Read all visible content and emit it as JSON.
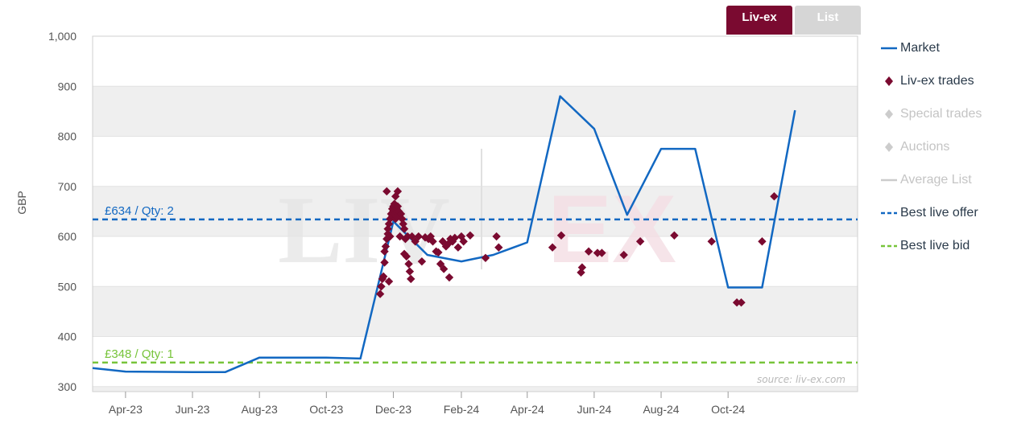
{
  "toggles": {
    "livex": "Liv-ex",
    "list": "List"
  },
  "legend": [
    {
      "label": "Market",
      "kind": "line",
      "color": "#1268c2",
      "muted": false,
      "icon": "line-icon"
    },
    {
      "label": "Liv-ex trades",
      "kind": "diamond",
      "color": "#7a0a30",
      "muted": false,
      "icon": "diamond-icon"
    },
    {
      "label": "Special trades",
      "kind": "diamond",
      "color": "#cccccc",
      "muted": true,
      "icon": "diamond-icon"
    },
    {
      "label": "Auctions",
      "kind": "diamond",
      "color": "#cccccc",
      "muted": true,
      "icon": "diamond-icon"
    },
    {
      "label": "Average List",
      "kind": "line",
      "color": "#cccccc",
      "muted": true,
      "icon": "line-icon"
    },
    {
      "label": "Best live offer",
      "kind": "dash",
      "color": "#1268c2",
      "muted": false,
      "icon": "dashed-line-icon"
    },
    {
      "label": "Best live bid",
      "kind": "dash",
      "color": "#77c43a",
      "muted": false,
      "icon": "dashed-line-icon"
    }
  ],
  "source": "source: liv-ex.com",
  "watermark": {
    "left": "LIV",
    "right": "EX"
  },
  "chart_data": {
    "type": "line",
    "ylabel": "GBP",
    "ylim": [
      290,
      1000
    ],
    "yticks": [
      "300",
      "400",
      "500",
      "600",
      "700",
      "800",
      "900",
      "1,000"
    ],
    "ytick_values": [
      300,
      400,
      500,
      600,
      700,
      800,
      900,
      1000
    ],
    "xlim": [
      "2023-03-02",
      "2025-01-27"
    ],
    "xticks": [
      {
        "label": "Apr-23",
        "date": "2023-04-01"
      },
      {
        "label": "Jun-23",
        "date": "2023-06-01"
      },
      {
        "label": "Aug-23",
        "date": "2023-08-01"
      },
      {
        "label": "Oct-23",
        "date": "2023-10-01"
      },
      {
        "label": "Dec-23",
        "date": "2023-12-01"
      },
      {
        "label": "Feb-24",
        "date": "2024-02-01"
      },
      {
        "label": "Apr-24",
        "date": "2024-04-01"
      },
      {
        "label": "Jun-24",
        "date": "2024-06-01"
      },
      {
        "label": "Aug-24",
        "date": "2024-08-01"
      },
      {
        "label": "Oct-24",
        "date": "2024-10-01"
      }
    ],
    "series": [
      {
        "name": "Market",
        "color": "#1268c2",
        "points": [
          [
            "2023-03-02",
            337
          ],
          [
            "2023-04-01",
            330
          ],
          [
            "2023-06-01",
            329
          ],
          [
            "2023-07-01",
            329
          ],
          [
            "2023-08-01",
            358
          ],
          [
            "2023-10-01",
            358
          ],
          [
            "2023-11-01",
            356
          ],
          [
            "2023-12-01",
            630
          ],
          [
            "2024-01-01",
            563
          ],
          [
            "2024-02-01",
            550
          ],
          [
            "2024-03-01",
            563
          ],
          [
            "2024-04-01",
            588
          ],
          [
            "2024-05-01",
            880
          ],
          [
            "2024-06-01",
            815
          ],
          [
            "2024-07-01",
            643
          ],
          [
            "2024-08-01",
            775
          ],
          [
            "2024-09-01",
            775
          ],
          [
            "2024-10-01",
            498
          ],
          [
            "2024-11-01",
            498
          ],
          [
            "2024-12-01",
            852
          ]
        ]
      },
      {
        "name": "Liv-ex trades",
        "type": "scatter",
        "color": "#7a0a30",
        "points": [
          [
            "2023-11-19",
            485
          ],
          [
            "2023-11-20",
            500
          ],
          [
            "2023-11-21",
            515
          ],
          [
            "2023-11-22",
            520
          ],
          [
            "2023-11-23",
            548
          ],
          [
            "2023-11-23",
            570
          ],
          [
            "2023-11-24",
            580
          ],
          [
            "2023-11-25",
            595
          ],
          [
            "2023-11-25",
            690
          ],
          [
            "2023-11-26",
            605
          ],
          [
            "2023-11-26",
            615
          ],
          [
            "2023-11-27",
            625
          ],
          [
            "2023-11-27",
            510
          ],
          [
            "2023-11-28",
            600
          ],
          [
            "2023-11-28",
            635
          ],
          [
            "2023-11-29",
            645
          ],
          [
            "2023-11-30",
            640
          ],
          [
            "2023-11-30",
            655
          ],
          [
            "2023-12-01",
            660
          ],
          [
            "2023-12-01",
            650
          ],
          [
            "2023-12-02",
            665
          ],
          [
            "2023-12-02",
            645
          ],
          [
            "2023-12-03",
            680
          ],
          [
            "2023-12-03",
            635
          ],
          [
            "2023-12-04",
            655
          ],
          [
            "2023-12-04",
            640
          ],
          [
            "2023-12-05",
            690
          ],
          [
            "2023-12-05",
            660
          ],
          [
            "2023-12-06",
            650
          ],
          [
            "2023-12-07",
            600
          ],
          [
            "2023-12-08",
            645
          ],
          [
            "2023-12-09",
            635
          ],
          [
            "2023-12-10",
            625
          ],
          [
            "2023-12-11",
            615
          ],
          [
            "2023-12-11",
            565
          ],
          [
            "2023-12-12",
            595
          ],
          [
            "2023-12-13",
            560
          ],
          [
            "2023-12-14",
            600
          ],
          [
            "2023-12-15",
            545
          ],
          [
            "2023-12-16",
            530
          ],
          [
            "2023-12-17",
            515
          ],
          [
            "2023-12-18",
            600
          ],
          [
            "2023-12-21",
            590
          ],
          [
            "2023-12-24",
            600
          ],
          [
            "2023-12-27",
            550
          ],
          [
            "2023-12-30",
            598
          ],
          [
            "2024-01-02",
            595
          ],
          [
            "2024-01-04",
            600
          ],
          [
            "2024-01-06",
            590
          ],
          [
            "2024-01-09",
            570
          ],
          [
            "2024-01-11",
            568
          ],
          [
            "2024-01-13",
            545
          ],
          [
            "2024-01-15",
            590
          ],
          [
            "2024-01-16",
            535
          ],
          [
            "2024-01-18",
            580
          ],
          [
            "2024-01-20",
            585
          ],
          [
            "2024-01-21",
            518
          ],
          [
            "2024-01-22",
            595
          ],
          [
            "2024-01-24",
            590
          ],
          [
            "2024-01-26",
            597
          ],
          [
            "2024-01-29",
            578
          ],
          [
            "2024-02-01",
            600
          ],
          [
            "2024-02-03",
            590
          ],
          [
            "2024-02-09",
            602
          ],
          [
            "2024-02-23",
            557
          ],
          [
            "2024-03-04",
            600
          ],
          [
            "2024-03-06",
            578
          ],
          [
            "2024-04-24",
            578
          ],
          [
            "2024-05-02",
            602
          ],
          [
            "2024-05-20",
            528
          ],
          [
            "2024-05-21",
            538
          ],
          [
            "2024-05-27",
            570
          ],
          [
            "2024-06-04",
            567
          ],
          [
            "2024-06-08",
            567
          ],
          [
            "2024-06-28",
            563
          ],
          [
            "2024-07-13",
            590
          ],
          [
            "2024-08-13",
            602
          ],
          [
            "2024-09-16",
            590
          ],
          [
            "2024-10-09",
            468
          ],
          [
            "2024-10-13",
            468
          ],
          [
            "2024-11-01",
            590
          ],
          [
            "2024-11-12",
            680
          ]
        ]
      }
    ],
    "reference_lines": [
      {
        "name": "Best live offer",
        "value": 634,
        "label": "£634 / Qty: 2",
        "color": "#1268c2"
      },
      {
        "name": "Best live bid",
        "value": 348,
        "label": "£348 / Qty: 1",
        "color": "#77c43a"
      }
    ]
  }
}
